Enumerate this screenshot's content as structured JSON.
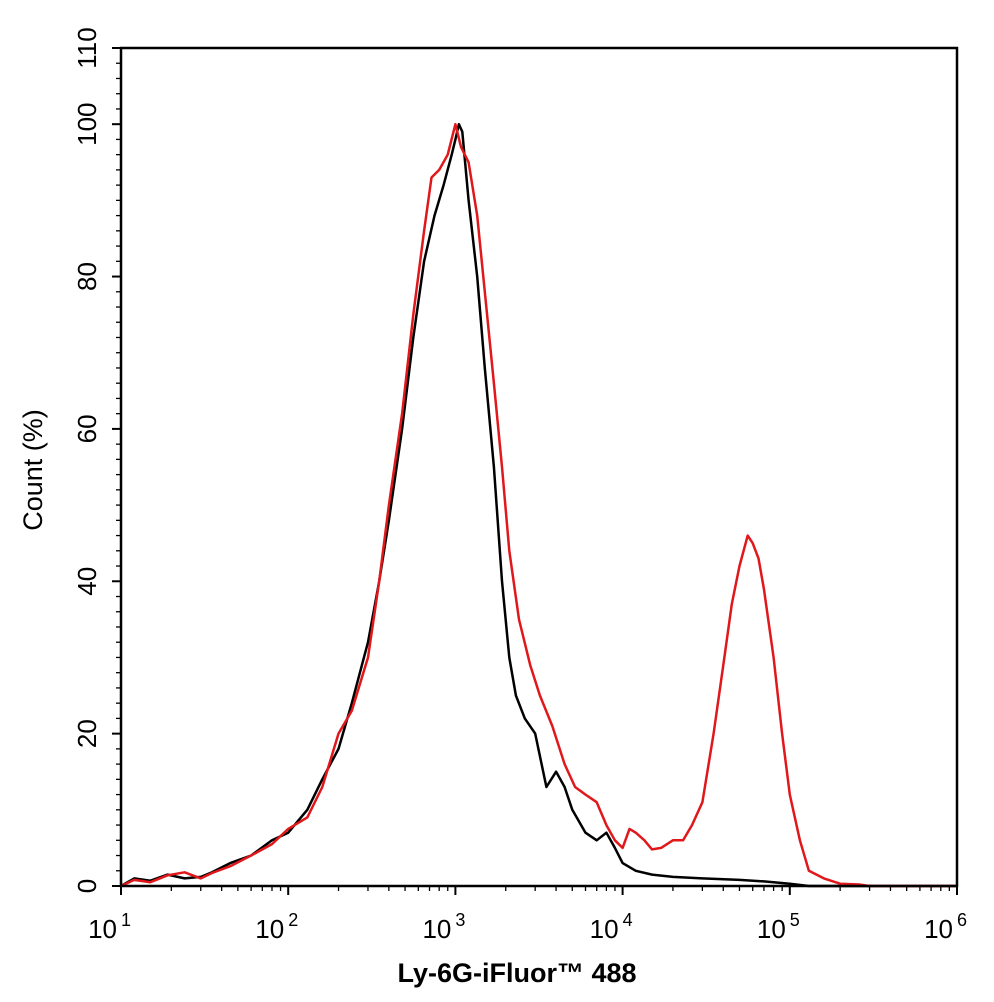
{
  "chart_data": {
    "type": "line",
    "xlabel": "Ly-6G-iFluor™ 488",
    "ylabel": "Count  (%)",
    "x_scale": "log",
    "xlim": [
      10,
      1000000
    ],
    "ylim": [
      0,
      110
    ],
    "x_ticks": [
      {
        "base": "10",
        "exp": "1",
        "value": 10
      },
      {
        "base": "10",
        "exp": "2",
        "value": 100
      },
      {
        "base": "10",
        "exp": "3",
        "value": 1000
      },
      {
        "base": "10",
        "exp": "4",
        "value": 10000
      },
      {
        "base": "10",
        "exp": "5",
        "value": 100000
      },
      {
        "base": "10",
        "exp": "6",
        "value": 1000000
      }
    ],
    "y_ticks": [
      "0",
      "20",
      "40",
      "60",
      "80",
      "100",
      "110"
    ],
    "grid": false,
    "legend": "none",
    "series": [
      {
        "color": "#000000",
        "points": [
          [
            10,
            0
          ],
          [
            12,
            1
          ],
          [
            15,
            0.7
          ],
          [
            19,
            1.5
          ],
          [
            24,
            1
          ],
          [
            30,
            1.2
          ],
          [
            35,
            1.8
          ],
          [
            45,
            3
          ],
          [
            60,
            4
          ],
          [
            80,
            6
          ],
          [
            100,
            7
          ],
          [
            130,
            10
          ],
          [
            160,
            14
          ],
          [
            200,
            18
          ],
          [
            240,
            24
          ],
          [
            300,
            32
          ],
          [
            350,
            40
          ],
          [
            400,
            48
          ],
          [
            480,
            60
          ],
          [
            560,
            72
          ],
          [
            650,
            82
          ],
          [
            750,
            88
          ],
          [
            850,
            92
          ],
          [
            950,
            96
          ],
          [
            1000,
            98
          ],
          [
            1050,
            100
          ],
          [
            1100,
            99
          ],
          [
            1200,
            90
          ],
          [
            1350,
            80
          ],
          [
            1500,
            68
          ],
          [
            1700,
            55
          ],
          [
            1900,
            40
          ],
          [
            2100,
            30
          ],
          [
            2300,
            25
          ],
          [
            2600,
            22
          ],
          [
            3000,
            20
          ],
          [
            3500,
            13
          ],
          [
            4000,
            15
          ],
          [
            4500,
            13
          ],
          [
            5000,
            10
          ],
          [
            6000,
            7
          ],
          [
            7000,
            6
          ],
          [
            8000,
            7
          ],
          [
            9000,
            5
          ],
          [
            10000,
            3
          ],
          [
            12000,
            2
          ],
          [
            15000,
            1.5
          ],
          [
            20000,
            1.2
          ],
          [
            30000,
            1
          ],
          [
            50000,
            0.8
          ],
          [
            70000,
            0.6
          ],
          [
            100000,
            0.3
          ],
          [
            130000,
            0
          ],
          [
            1000000,
            0
          ]
        ]
      },
      {
        "color": "#e0181b",
        "points": [
          [
            10,
            0
          ],
          [
            12,
            0.8
          ],
          [
            15,
            0.5
          ],
          [
            19,
            1.4
          ],
          [
            24,
            1.8
          ],
          [
            30,
            1
          ],
          [
            35,
            1.7
          ],
          [
            45,
            2.6
          ],
          [
            60,
            4
          ],
          [
            80,
            5.5
          ],
          [
            100,
            7.5
          ],
          [
            130,
            9
          ],
          [
            160,
            13
          ],
          [
            200,
            20
          ],
          [
            240,
            23
          ],
          [
            300,
            30
          ],
          [
            350,
            40
          ],
          [
            400,
            50
          ],
          [
            480,
            62
          ],
          [
            560,
            75
          ],
          [
            650,
            86
          ],
          [
            720,
            93
          ],
          [
            800,
            94
          ],
          [
            900,
            96
          ],
          [
            1000,
            100
          ],
          [
            1080,
            97
          ],
          [
            1200,
            95
          ],
          [
            1350,
            88
          ],
          [
            1500,
            78
          ],
          [
            1700,
            66
          ],
          [
            1900,
            55
          ],
          [
            2100,
            44
          ],
          [
            2400,
            35
          ],
          [
            2800,
            29
          ],
          [
            3200,
            25
          ],
          [
            3800,
            21
          ],
          [
            4500,
            16
          ],
          [
            5200,
            13
          ],
          [
            6000,
            12
          ],
          [
            7000,
            11
          ],
          [
            8000,
            8
          ],
          [
            9000,
            6
          ],
          [
            10000,
            5
          ],
          [
            11000,
            7.5
          ],
          [
            12000,
            7
          ],
          [
            13500,
            6
          ],
          [
            15000,
            4.8
          ],
          [
            17000,
            5
          ],
          [
            20000,
            6
          ],
          [
            23000,
            6
          ],
          [
            26000,
            8
          ],
          [
            30000,
            11
          ],
          [
            35000,
            20
          ],
          [
            40000,
            29
          ],
          [
            45000,
            37
          ],
          [
            50000,
            42
          ],
          [
            56000,
            46
          ],
          [
            60000,
            45
          ],
          [
            65000,
            43
          ],
          [
            70000,
            39
          ],
          [
            80000,
            30
          ],
          [
            90000,
            20
          ],
          [
            100000,
            12
          ],
          [
            115000,
            6
          ],
          [
            130000,
            2
          ],
          [
            160000,
            1
          ],
          [
            200000,
            0.3
          ],
          [
            260000,
            0.2
          ],
          [
            300000,
            0
          ],
          [
            1000000,
            0
          ]
        ]
      }
    ]
  }
}
